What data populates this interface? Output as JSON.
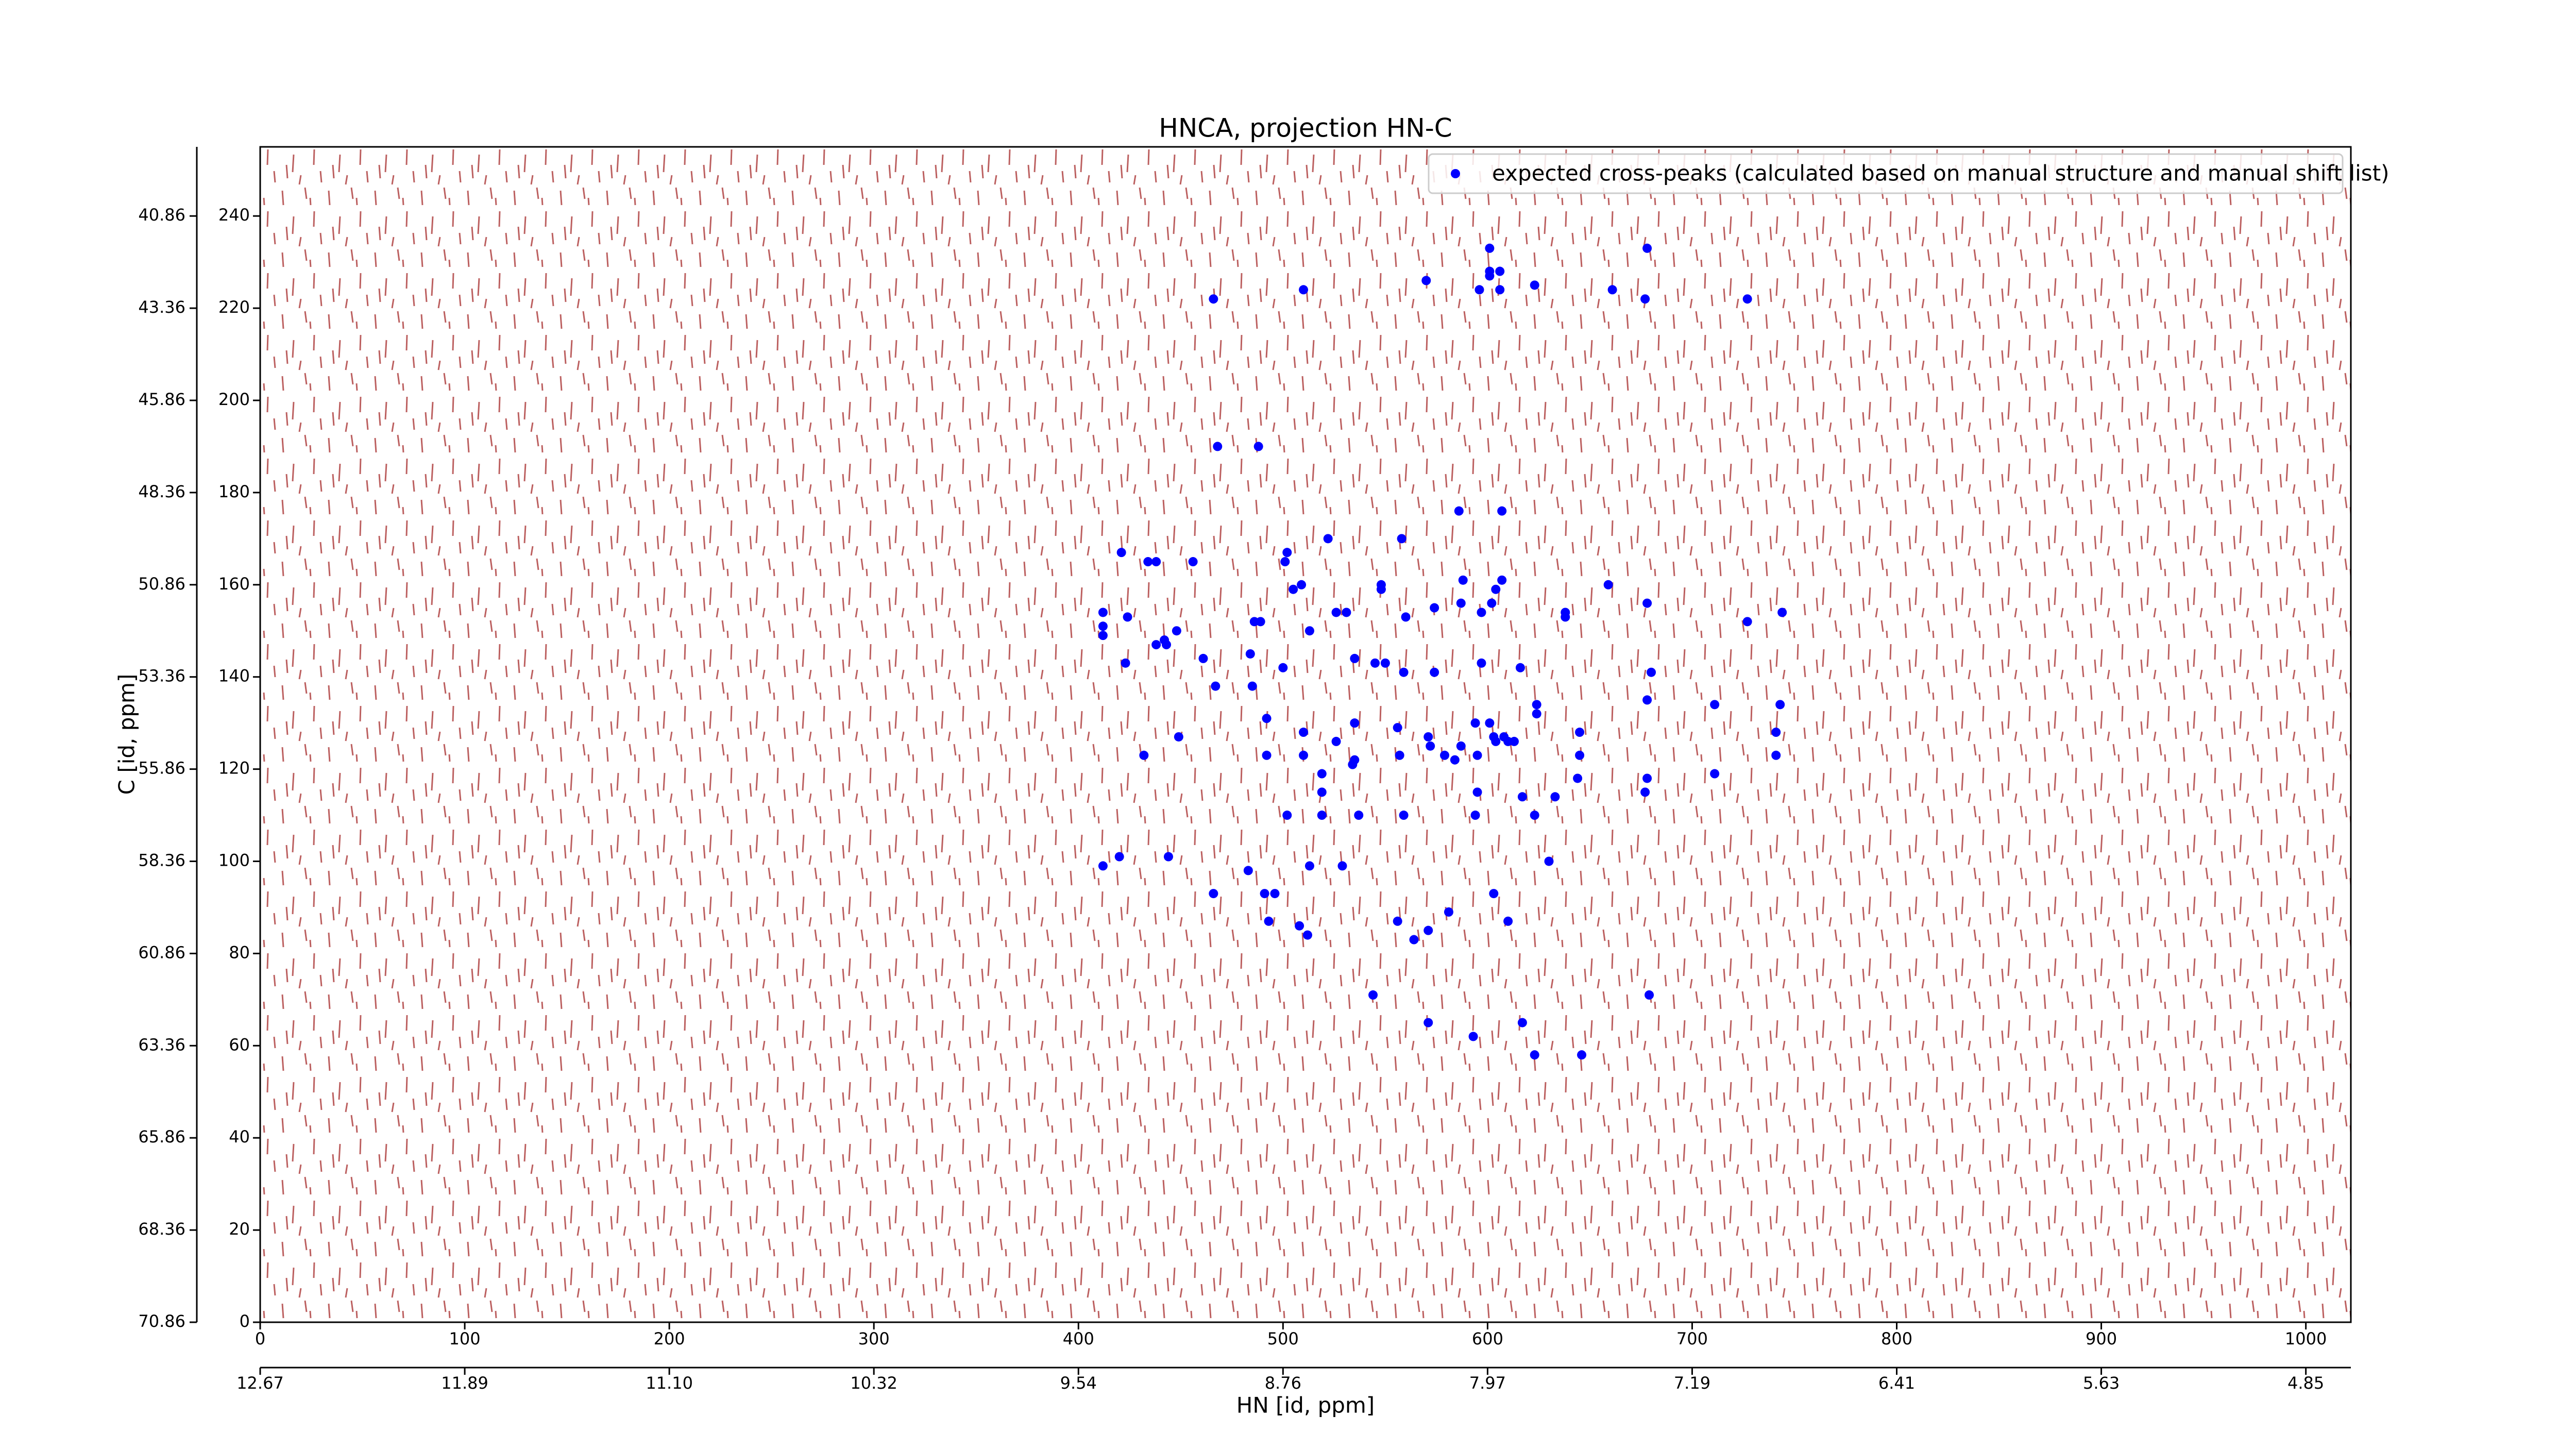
{
  "chart_data": {
    "type": "scatter",
    "title": "HNCA, projection HN-C",
    "xlabel": "HN [id, ppm]",
    "ylabel": "C [id, ppm]",
    "xlim": [
      0,
      1022
    ],
    "ylim": [
      0,
      255
    ],
    "xticks": [
      0,
      100,
      200,
      300,
      400,
      500,
      600,
      700,
      800,
      900,
      1000
    ],
    "yticks": [
      0,
      20,
      40,
      60,
      80,
      100,
      120,
      140,
      160,
      180,
      200,
      220,
      240
    ],
    "x2ticks": [
      {
        "value": 0,
        "label": "12.67"
      },
      {
        "value": 100,
        "label": "11.89"
      },
      {
        "value": 200,
        "label": "11.10"
      },
      {
        "value": 300,
        "label": "10.32"
      },
      {
        "value": 400,
        "label": "9.54"
      },
      {
        "value": 500,
        "label": "8.76"
      },
      {
        "value": 600,
        "label": "7.97"
      },
      {
        "value": 700,
        "label": "7.19"
      },
      {
        "value": 800,
        "label": "6.41"
      },
      {
        "value": 900,
        "label": "5.63"
      },
      {
        "value": 1000,
        "label": "4.85"
      }
    ],
    "y2ticks": [
      {
        "value": 240,
        "label": "40.86"
      },
      {
        "value": 220,
        "label": "43.36"
      },
      {
        "value": 200,
        "label": "45.86"
      },
      {
        "value": 180,
        "label": "48.36"
      },
      {
        "value": 160,
        "label": "50.86"
      },
      {
        "value": 140,
        "label": "53.36"
      },
      {
        "value": 120,
        "label": "55.86"
      },
      {
        "value": 100,
        "label": "58.36"
      },
      {
        "value": 80,
        "label": "60.86"
      },
      {
        "value": 60,
        "label": "63.36"
      },
      {
        "value": 40,
        "label": "65.86"
      },
      {
        "value": 20,
        "label": "68.36"
      },
      {
        "value": 0,
        "label": "70.86"
      }
    ],
    "legend": "upper right",
    "series": [
      {
        "name": "expected cross-peaks (calculated based on manual structure and manual shift list)",
        "color": "#0000ff",
        "x": [
          466,
          510,
          570,
          601,
          601,
          606,
          601,
          596,
          606,
          623,
          661,
          678,
          677,
          727,
          468,
          488,
          421,
          434,
          438,
          456,
          502,
          501,
          522,
          558,
          586,
          607,
          505,
          509,
          548,
          548,
          588,
          607,
          604,
          659,
          678,
          412,
          412,
          424,
          412,
          448,
          442,
          486,
          489,
          513,
          526,
          531,
          560,
          574,
          587,
          597,
          602,
          638,
          638,
          727,
          744,
          423,
          438,
          443,
          461,
          484,
          500,
          535,
          545,
          550,
          559,
          574,
          597,
          616,
          467,
          485,
          680,
          678,
          711,
          743,
          510,
          535,
          556,
          571,
          572,
          594,
          601,
          603,
          608,
          613,
          624,
          624,
          645,
          741,
          449,
          492,
          492,
          510,
          526,
          535,
          534,
          557,
          579,
          584,
          587,
          595,
          604,
          610,
          645,
          644,
          741,
          711,
          678,
          677,
          432,
          519,
          519,
          502,
          519,
          537,
          559,
          594,
          617,
          633,
          595,
          412,
          420,
          444,
          483,
          513,
          529,
          630,
          623,
          466,
          491,
          496,
          493,
          508,
          512,
          556,
          564,
          571,
          581,
          610,
          603,
          544,
          679,
          571,
          593,
          617,
          623,
          646
        ],
        "values": [
          222,
          224,
          226,
          233,
          228,
          228,
          227,
          224,
          224,
          225,
          224,
          233,
          222,
          222,
          190,
          190,
          167,
          165,
          165,
          165,
          167,
          165,
          170,
          170,
          176,
          176,
          159,
          160,
          160,
          159,
          161,
          161,
          159,
          160,
          156,
          154,
          151,
          153,
          149,
          150,
          148,
          152,
          152,
          150,
          154,
          154,
          153,
          155,
          156,
          154,
          156,
          154,
          153,
          152,
          154,
          143,
          147,
          147,
          144,
          145,
          142,
          144,
          143,
          143,
          141,
          141,
          143,
          142,
          138,
          138,
          141,
          135,
          134,
          134,
          128,
          130,
          129,
          127,
          125,
          130,
          130,
          127,
          127,
          126,
          134,
          132,
          128,
          128,
          127,
          131,
          123,
          123,
          126,
          122,
          121,
          123,
          123,
          122,
          125,
          123,
          126,
          126,
          123,
          118,
          123,
          119,
          118,
          115,
          123,
          119,
          115,
          110,
          110,
          110,
          110,
          110,
          114,
          114,
          115,
          99,
          101,
          101,
          98,
          99,
          99,
          100,
          110,
          93,
          93,
          93,
          87,
          86,
          84,
          87,
          83,
          85,
          89,
          87,
          93,
          71,
          71,
          65,
          62,
          65,
          58,
          58
        ]
      }
    ]
  }
}
